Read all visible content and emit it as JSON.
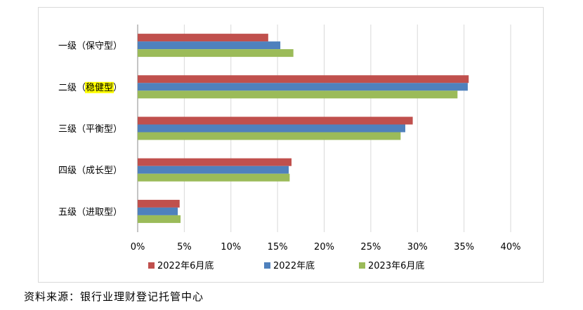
{
  "chart_data": {
    "type": "bar",
    "orientation": "horizontal",
    "categories": [
      {
        "prefix": "一级（",
        "highlight": "保守型",
        "suffix": "）",
        "highlighted": false
      },
      {
        "prefix": "二级（",
        "highlight": "稳健型",
        "suffix": "）",
        "highlighted": true
      },
      {
        "prefix": "三级（",
        "highlight": "平衡型",
        "suffix": "）",
        "highlighted": false
      },
      {
        "prefix": "四级（",
        "highlight": "成长型",
        "suffix": "）",
        "highlighted": false
      },
      {
        "prefix": "五级（",
        "highlight": "进取型",
        "suffix": "）",
        "highlighted": false
      }
    ],
    "series": [
      {
        "name": "2022年6月底",
        "color": "#c0504d",
        "values": [
          14.0,
          35.5,
          29.5,
          16.5,
          4.5
        ]
      },
      {
        "name": "2022年底",
        "color": "#4f81bd",
        "values": [
          15.3,
          35.4,
          28.7,
          16.2,
          4.3
        ]
      },
      {
        "name": "2023年6月底",
        "color": "#9bbb59",
        "values": [
          16.7,
          34.3,
          28.2,
          16.3,
          4.6
        ]
      }
    ],
    "xlim": [
      0,
      40
    ],
    "xticks": [
      "0%",
      "5%",
      "10%",
      "15%",
      "20%",
      "25%",
      "30%",
      "35%",
      "40%"
    ],
    "grid": true,
    "legend_position": "bottom",
    "highlight_color": "#ffff00"
  },
  "source_note": "资料来源：银行业理财登记托管中心"
}
